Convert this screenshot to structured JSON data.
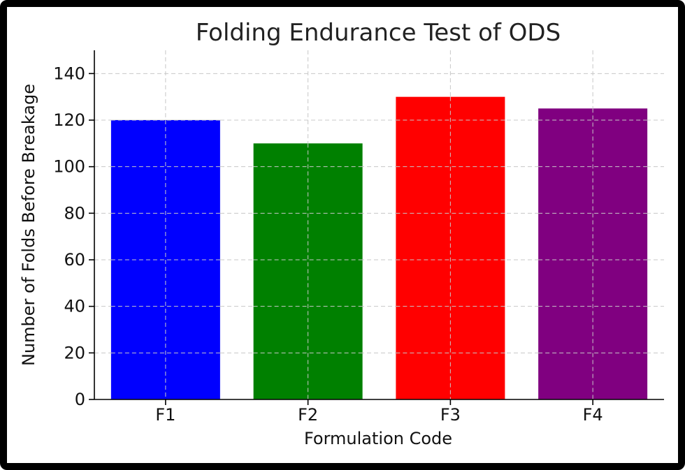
{
  "chart_data": {
    "type": "bar",
    "title": "Folding Endurance Test of ODS",
    "xlabel": "Formulation Code",
    "ylabel": "Number of Folds Before Breakage",
    "categories": [
      "F1",
      "F2",
      "F3",
      "F4"
    ],
    "values": [
      120,
      110,
      130,
      125
    ],
    "bar_colors": [
      "#0000ff",
      "#008000",
      "#ff0000",
      "#800080"
    ],
    "ylim": [
      0,
      150
    ],
    "yticks": [
      0,
      20,
      40,
      60,
      80,
      100,
      120,
      140
    ],
    "grid": true,
    "legend": "none"
  }
}
